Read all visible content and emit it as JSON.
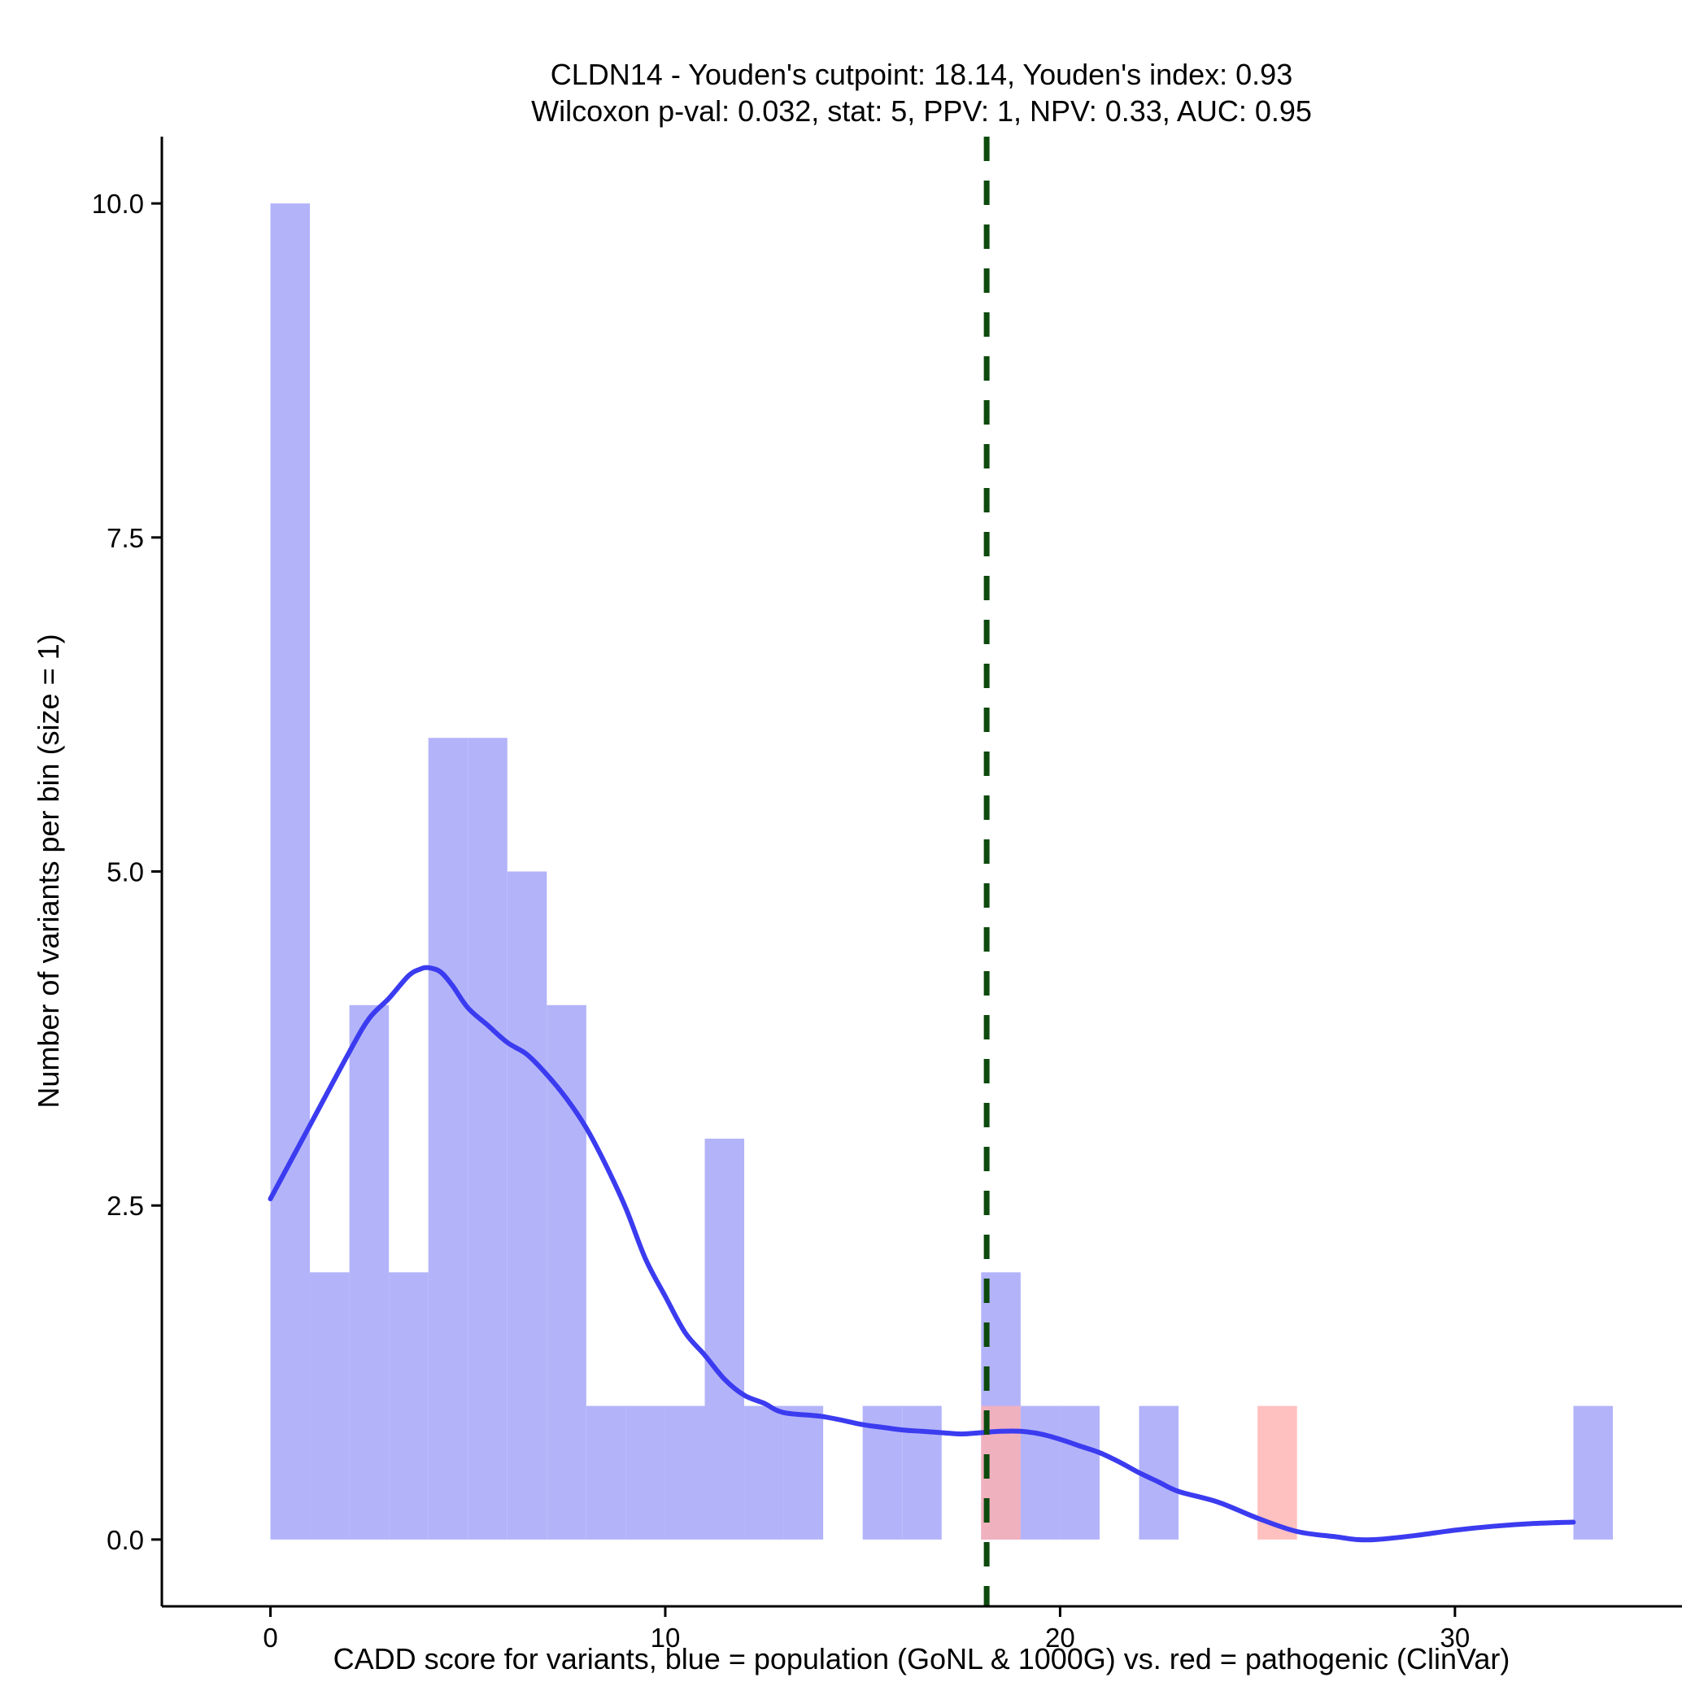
{
  "chart_data": {
    "type": "histogram",
    "title_line1": "CLDN14 - Youden's cutpoint: 18.14, Youden's index: 0.93",
    "title_line2": "Wilcoxon p-val: 0.032, stat: 5, PPV: 1, NPV: 0.33, AUC: 0.95",
    "xlabel": "CADD score for variants, blue = population (GoNL & 1000G) vs. red = pathogenic (ClinVar)",
    "ylabel": "Number of variants per bin (size = 1)",
    "xlim": [
      -2.75,
      35.75
    ],
    "ylim": [
      -0.5,
      10.5
    ],
    "x_ticks": [
      0,
      10,
      20,
      30
    ],
    "x_tick_labels": [
      "0",
      "10",
      "20",
      "30"
    ],
    "y_ticks": [
      0,
      2.5,
      5,
      7.5,
      10
    ],
    "y_tick_labels": [
      "0.0",
      "2.5",
      "5.0",
      "7.5",
      "10.0"
    ],
    "bin_width": 1,
    "cutpoint": 18.14,
    "colors": {
      "population": "#b3b3fa",
      "pathogenic": "#ffb0b0",
      "density": "#3b3bf0",
      "cutpoint": "#0d4a0d"
    },
    "series": [
      {
        "name": "population",
        "bin_starts": [
          0,
          1,
          2,
          3,
          4,
          5,
          6,
          7,
          8,
          9,
          10,
          11,
          12,
          13,
          15,
          16,
          18,
          19,
          20,
          22,
          33
        ],
        "values": [
          10,
          2,
          4,
          2,
          6,
          6,
          5,
          4,
          1,
          1,
          1,
          3,
          1,
          1,
          1,
          1,
          2,
          1,
          1,
          1,
          1
        ]
      },
      {
        "name": "pathogenic",
        "bin_starts": [
          18,
          25
        ],
        "values": [
          1,
          1
        ]
      }
    ],
    "density_curve": {
      "x": [
        0,
        1,
        2,
        2.5,
        3,
        3.5,
        3.8,
        4,
        4.3,
        4.6,
        5,
        5.5,
        6,
        6.5,
        7,
        7.5,
        8,
        8.5,
        9,
        9.5,
        10,
        10.5,
        11,
        11.5,
        12,
        12.5,
        13,
        14,
        15,
        15.5,
        16,
        16.5,
        17,
        17.5,
        18,
        18.5,
        19,
        19.5,
        20,
        20.5,
        21,
        21.5,
        22,
        22.5,
        23,
        24,
        25,
        26,
        27,
        27.5,
        28,
        29,
        30,
        31,
        32,
        33
      ],
      "y": [
        2.55,
        3.1,
        3.65,
        3.9,
        4.05,
        4.22,
        4.27,
        4.28,
        4.25,
        4.15,
        3.98,
        3.85,
        3.72,
        3.63,
        3.48,
        3.3,
        3.08,
        2.8,
        2.48,
        2.1,
        1.82,
        1.55,
        1.38,
        1.2,
        1.08,
        1.02,
        0.95,
        0.92,
        0.86,
        0.84,
        0.82,
        0.81,
        0.8,
        0.79,
        0.8,
        0.81,
        0.81,
        0.79,
        0.75,
        0.7,
        0.65,
        0.58,
        0.5,
        0.43,
        0.36,
        0.28,
        0.16,
        0.06,
        0.02,
        0,
        0.0,
        0.03,
        0.07,
        0.1,
        0.12,
        0.13
      ]
    }
  }
}
